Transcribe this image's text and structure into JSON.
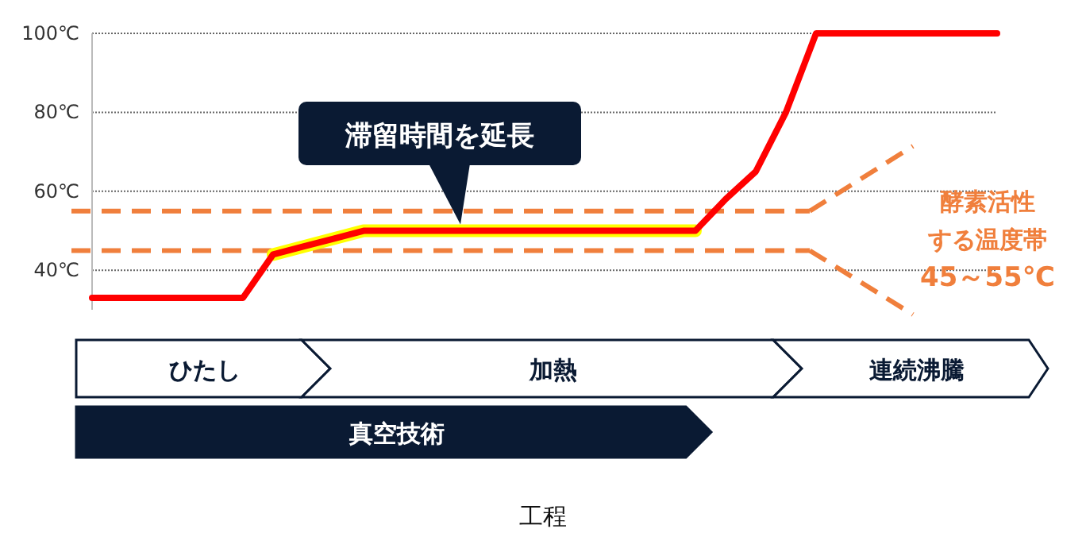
{
  "chart_data": {
    "type": "line",
    "title": "工程",
    "categories": [
      null,
      null,
      null,
      null,
      null,
      null,
      null,
      null,
      null,
      null,
      null,
      null,
      null,
      null,
      null,
      null,
      null,
      null,
      null,
      null,
      null,
      null,
      null,
      null,
      null,
      null,
      null,
      null,
      null,
      null,
      null
    ],
    "ylim": [
      30,
      100
    ],
    "yticks": [
      {
        "value": 40,
        "label": "40℃"
      },
      {
        "value": 60,
        "label": "60℃"
      },
      {
        "value": 80,
        "label": "80℃"
      },
      {
        "value": 100,
        "label": "100℃"
      }
    ],
    "tick_labels": "y",
    "grid": "y",
    "series": [
      {
        "color": "#ffff00",
        "values": [
          null,
          null,
          null,
          null,
          null,
          null,
          44,
          46,
          48,
          50,
          50,
          50,
          50,
          50,
          50,
          50,
          50,
          50,
          50,
          50,
          50,
          null,
          null,
          null,
          null,
          null,
          null,
          null,
          null,
          null,
          null
        ]
      },
      {
        "color": "#ff0000",
        "values": [
          33,
          33,
          33,
          33,
          33,
          33,
          44,
          46,
          48,
          50,
          50,
          50,
          50,
          50,
          50,
          50,
          50,
          50,
          50,
          50,
          50,
          58,
          65,
          80,
          100,
          100,
          100,
          100,
          100,
          100,
          100
        ]
      }
    ],
    "ref_lines": [
      {
        "axis": "y",
        "value": 45,
        "color": "#f07f3c",
        "line_style": "dashed"
      },
      {
        "axis": "y",
        "value": 55,
        "color": "#f07f3c",
        "line_style": "dashed"
      }
    ],
    "annotations": [
      {
        "text": "滞留時間を延長",
        "y": 50
      },
      "酵素活性",
      "する温度帯",
      "45～55℃",
      "ひたし",
      "加熱",
      "連続沸騰",
      "真空技術"
    ]
  }
}
